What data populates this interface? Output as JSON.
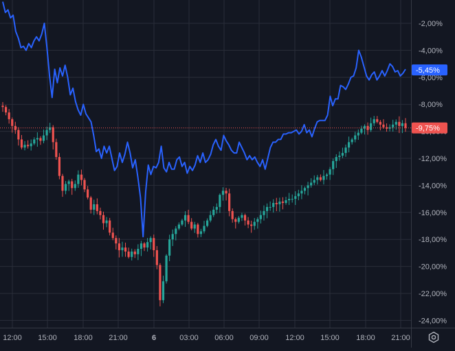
{
  "chart_data": {
    "type": "line",
    "subtype": "percent-comparison (line + candlestick)",
    "x_ticks": [
      "12:00",
      "15:00",
      "18:00",
      "21:00",
      "6",
      "03:00",
      "06:00",
      "09:00",
      "12:00",
      "15:00",
      "18:00",
      "21:00"
    ],
    "y_ticks": [
      "-2,00%",
      "-4,00%",
      "-6,00%",
      "-8,00%",
      "-10,00%",
      "-12,00%",
      "-14,00%",
      "-16,00%",
      "-18,00%",
      "-20,00%",
      "-22,00%",
      "-24,00%"
    ],
    "ylim": [
      -24.6,
      0
    ],
    "grid": true,
    "series": [
      {
        "style": "line",
        "color": "#2962ff",
        "last_label": "-5,45%",
        "last_value": -5.45,
        "values": [
          -0.4,
          -1.2,
          -1.0,
          -1.6,
          -1.4,
          -2.6,
          -3.1,
          -3.8,
          -3.7,
          -4.0,
          -3.5,
          -3.8,
          -3.3,
          -3.0,
          -3.3,
          -2.8,
          -2.0,
          -3.8,
          -5.9,
          -7.5,
          -5.4,
          -6.4,
          -5.3,
          -5.9,
          -5.1,
          -6.0,
          -7.3,
          -6.8,
          -7.8,
          -8.4,
          -8.8,
          -8.0,
          -8.7,
          -9.0,
          -9.3,
          -10.3,
          -11.5,
          -11.3,
          -12.0,
          -11.1,
          -11.6,
          -11.1,
          -12.0,
          -12.9,
          -12.6,
          -11.6,
          -12.3,
          -11.7,
          -10.8,
          -11.6,
          -12.7,
          -12.1,
          -13.4,
          -14.9,
          -17.8,
          -14.5,
          -12.5,
          -13.2,
          -12.6,
          -12.7,
          -12.3,
          -11.1,
          -12.7,
          -13.0,
          -12.3,
          -12.8,
          -12.8,
          -12.1,
          -11.9,
          -12.6,
          -12.3,
          -13.1,
          -12.6,
          -12.9,
          -12.5,
          -11.8,
          -12.3,
          -11.6,
          -12.3,
          -12.1,
          -11.7,
          -11.0,
          -10.6,
          -11.1,
          -11.4,
          -10.3,
          -10.7,
          -11.0,
          -11.4,
          -11.6,
          -11.6,
          -10.8,
          -11.2,
          -11.6,
          -12.1,
          -11.8,
          -12.1,
          -11.9,
          -12.3,
          -12.6,
          -12.1,
          -12.8,
          -12.0,
          -11.2,
          -10.8,
          -10.8,
          -10.6,
          -10.6,
          -10.2,
          -10.2,
          -10.1,
          -10.1,
          -10.0,
          -9.9,
          -10.2,
          -10.0,
          -9.5,
          -10.1,
          -9.9,
          -10.4,
          -9.8,
          -9.3,
          -9.2,
          -9.2,
          -9.2,
          -8.8,
          -7.4,
          -8.1,
          -7.6,
          -7.6,
          -6.6,
          -6.7,
          -6.9,
          -6.5,
          -6.0,
          -5.9,
          -5.3,
          -4.0,
          -4.5,
          -5.2,
          -5.9,
          -6.2,
          -5.8,
          -5.6,
          -6.2,
          -5.9,
          -5.5,
          -5.9,
          -5.5,
          -5.0,
          -5.2,
          -5.6,
          -5.5,
          -5.9,
          -5.7,
          -5.4
        ]
      },
      {
        "style": "candlestick",
        "up_color": "#26a69a",
        "down_color": "#ef5350",
        "last_label": "-9,75%",
        "last_value": -9.75,
        "seed": 7,
        "values": [
          -8.2,
          -8.6,
          -9.1,
          -9.6,
          -9.9,
          -10.6,
          -11.2,
          -11.0,
          -11.1,
          -10.9,
          -10.6,
          -10.5,
          -10.7,
          -10.3,
          -9.9,
          -9.7,
          -10.8,
          -11.9,
          -13.3,
          -14.4,
          -13.9,
          -13.7,
          -14.2,
          -13.9,
          -13.2,
          -13.6,
          -14.3,
          -14.9,
          -15.8,
          -15.4,
          -15.9,
          -16.2,
          -16.8,
          -16.6,
          -17.5,
          -17.9,
          -18.3,
          -18.8,
          -18.6,
          -18.9,
          -19.3,
          -18.9,
          -19.1,
          -18.7,
          -18.3,
          -18.6,
          -18.2,
          -17.9,
          -18.8,
          -19.9,
          -22.5,
          -21.1,
          -19.2,
          -18.0,
          -17.6,
          -17.2,
          -16.9,
          -16.6,
          -16.2,
          -16.7,
          -17.2,
          -16.9,
          -17.6,
          -17.4,
          -17.0,
          -16.6,
          -16.2,
          -15.8,
          -15.6,
          -14.7,
          -14.4,
          -14.6,
          -15.9,
          -16.5,
          -16.7,
          -16.4,
          -16.2,
          -16.6,
          -16.9,
          -17.0,
          -16.7,
          -16.5,
          -16.2,
          -15.9,
          -15.6,
          -15.6,
          -15.3,
          -15.4,
          -15.2,
          -15.3,
          -15.1,
          -15.0,
          -15.0,
          -14.8,
          -14.6,
          -14.4,
          -14.2,
          -14.0,
          -13.8,
          -13.6,
          -13.4,
          -13.6,
          -13.3,
          -13.2,
          -12.8,
          -12.2,
          -11.9,
          -11.8,
          -11.6,
          -11.2,
          -10.8,
          -10.6,
          -10.3,
          -10.1,
          -9.8,
          -9.6,
          -9.9,
          -9.4,
          -9.1,
          -9.3,
          -9.5,
          -9.7,
          -9.8,
          -9.7,
          -9.5,
          -9.3,
          -9.6,
          -9.4,
          -9.75
        ]
      }
    ]
  }
}
